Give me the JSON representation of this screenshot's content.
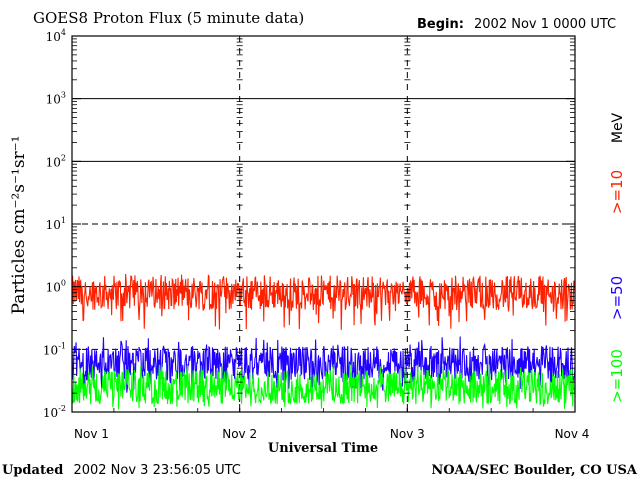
{
  "header": {
    "title": "GOES8 Proton Flux (5 minute data)",
    "begin_label": "Begin:",
    "begin_value": "2002 Nov 1 0000 UTC"
  },
  "footer": {
    "updated_label": "Updated",
    "updated_value": "2002 Nov  3 23:56:05 UTC",
    "credit": "NOAA/SEC Boulder, CO USA"
  },
  "right_legend": {
    "unit": "MeV",
    "entries": [
      {
        "label": ">=10",
        "color": "#ff2000"
      },
      {
        "label": ">=50",
        "color": "#2000ff"
      },
      {
        "label": ">=100",
        "color": "#00ff00"
      }
    ]
  },
  "chart_data": {
    "type": "line",
    "title": "GOES8 Proton Flux (5 minute data)",
    "xlabel": "Universal Time",
    "ylabel": "Particles cm⁻²s⁻¹sr⁻¹",
    "yscale": "log",
    "ylim": [
      0.01,
      10000
    ],
    "x_ticks": [
      "Nov 1",
      "Nov 2",
      "Nov 3",
      "Nov 4"
    ],
    "y_ticks": [
      {
        "base": "10",
        "exp": "-2"
      },
      {
        "base": "10",
        "exp": "-1"
      },
      {
        "base": "10",
        "exp": "0"
      },
      {
        "base": "10",
        "exp": "1"
      },
      {
        "base": "10",
        "exp": "2"
      },
      {
        "base": "10",
        "exp": "3"
      },
      {
        "base": "10",
        "exp": "4"
      }
    ],
    "grid": {
      "solid_at": [
        1,
        100,
        1000
      ],
      "dashed_at": [
        0.1,
        10
      ]
    },
    "series": [
      {
        "name": ">=10",
        "color": "#ff2000",
        "typical": 0.8,
        "min": 0.2,
        "max": 1.6
      },
      {
        "name": ">=50",
        "color": "#2000ff",
        "typical": 0.06,
        "min": 0.02,
        "max": 0.16
      },
      {
        "name": ">=100",
        "color": "#00ff00",
        "typical": 0.025,
        "min": 0.011,
        "max": 0.06
      }
    ]
  }
}
